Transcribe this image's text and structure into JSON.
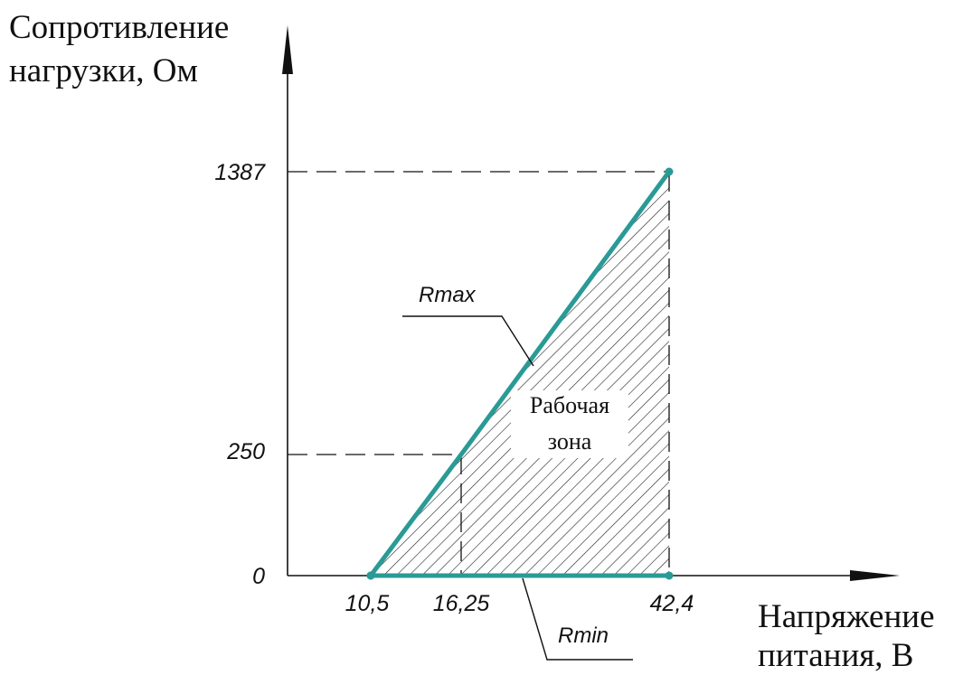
{
  "chart_data": {
    "type": "area",
    "ylabel_lines": [
      "Сопротивление",
      "нагрузки, Ом"
    ],
    "xlabel_lines": [
      "Напряжение",
      "питания, В"
    ],
    "x_ticks": [
      "10,5",
      "16,25",
      "42,4"
    ],
    "y_ticks": [
      "0",
      "250",
      "1387"
    ],
    "series": [
      {
        "name": "Rmax",
        "x": [
          10.5,
          16.25,
          42.4
        ],
        "y": [
          0,
          250,
          1387
        ]
      },
      {
        "name": "Rmin",
        "x": [
          10.5,
          42.4
        ],
        "y": [
          0,
          0
        ]
      }
    ],
    "region": {
      "label_lines": [
        "Рабочая",
        "зона"
      ],
      "hatched": true
    },
    "colors": {
      "series": "#2a9a96",
      "axes": "#111111",
      "hatch": "#222222"
    }
  }
}
